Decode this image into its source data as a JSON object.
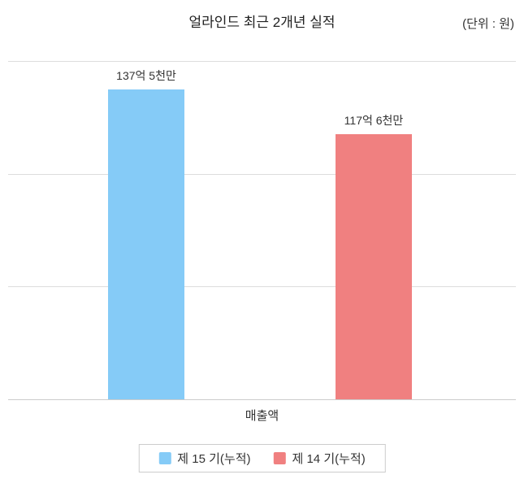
{
  "title": "얼라인드 최근 2개년 실적",
  "unit_label": "(단위 : 원)",
  "chart_data": {
    "type": "bar",
    "title": "얼라인드 최근 2개년 실적",
    "unit": "원",
    "categories": [
      "매출액"
    ],
    "series": [
      {
        "name": "제 15 기(누적)",
        "values": [
          13750000000
        ],
        "data_label": "137억 5천만",
        "color": "#85CBF7"
      },
      {
        "name": "제 14 기(누적)",
        "values": [
          11760000000
        ],
        "data_label": "117억 6천만",
        "color": "#F08080"
      }
    ],
    "xlabel": "",
    "ylabel": "",
    "ylim": [
      0,
      15000000000
    ],
    "gridline_values": [
      0,
      5000000000,
      10000000000,
      15000000000
    ],
    "grid": true,
    "y_tick_labels_visible": false,
    "legend_position": "bottom"
  }
}
